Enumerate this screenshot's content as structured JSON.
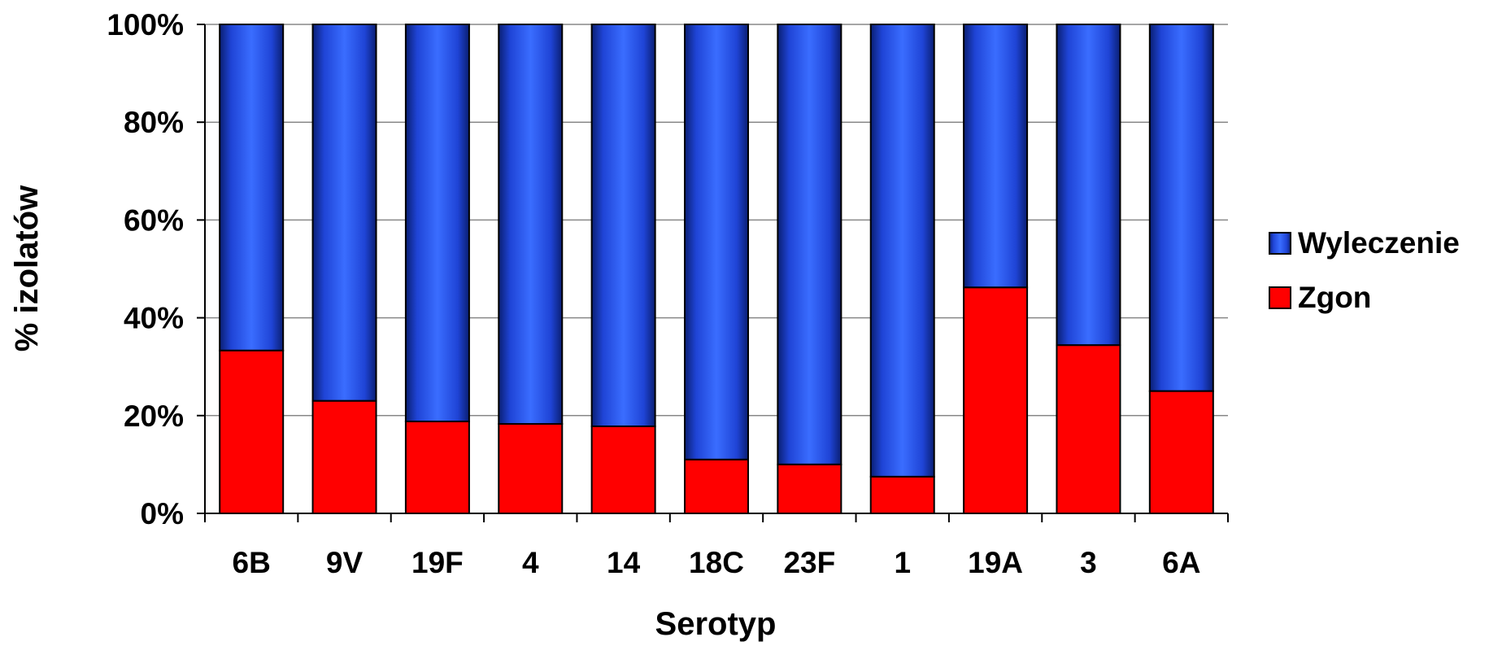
{
  "chart_data": {
    "type": "bar",
    "stacked": true,
    "normalized": true,
    "categories": [
      "6B",
      "9V",
      "19F",
      "4",
      "14",
      "18C",
      "23F",
      "1",
      "19A",
      "3",
      "6A"
    ],
    "series": [
      {
        "name": "Zgon",
        "color": "#ff0000",
        "values": [
          33.3,
          23.0,
          18.8,
          18.3,
          17.8,
          11.0,
          10.0,
          7.5,
          46.2,
          34.4,
          25.0
        ]
      },
      {
        "name": "Wyleczenie",
        "color": "#2f5bff",
        "values": [
          66.7,
          77.0,
          81.2,
          81.7,
          82.2,
          89.0,
          90.0,
          92.5,
          53.8,
          65.6,
          75.0
        ]
      }
    ],
    "y_ticks": [
      "0%",
      "20%",
      "40%",
      "60%",
      "80%",
      "100%"
    ],
    "ylim": [
      0,
      100
    ],
    "xlabel": "Serotyp",
    "ylabel": "% izolatów",
    "grid": true,
    "legend": {
      "placement": "right",
      "entries": [
        "Wyleczenie",
        "Zgon"
      ]
    }
  }
}
